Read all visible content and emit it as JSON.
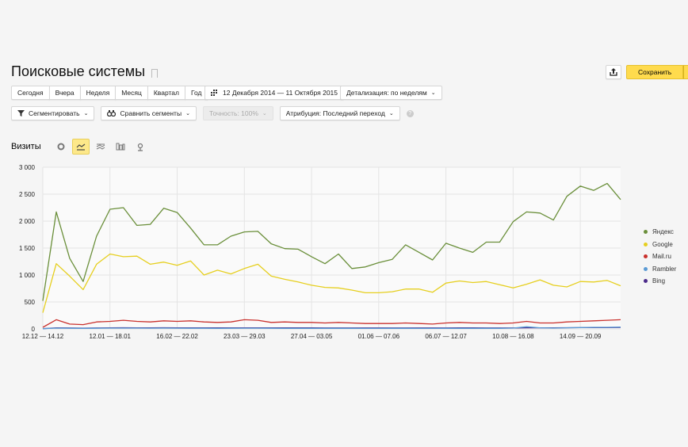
{
  "header": {
    "title": "Поисковые системы",
    "save_label": "Сохранить"
  },
  "toolbar": {
    "periods": [
      "Сегодня",
      "Вчера",
      "Неделя",
      "Месяц",
      "Квартал",
      "Год"
    ],
    "date_range": "12 Декабря 2014 — 11 Октября 2015",
    "detail": "Детализация: по неделям",
    "segment": "Сегментировать",
    "compare": "Сравнить сегменты",
    "accuracy": "Точность: 100%",
    "attribution": "Атрибуция: Последний переход"
  },
  "metric": {
    "title": "Визиты",
    "views": [
      "pie-chart-icon",
      "line-chart-icon",
      "area-chart-icon",
      "bar-chart-icon",
      "map-icon"
    ],
    "active_view": "line-chart-icon"
  },
  "colors": {
    "accent": "#ffdb4d",
    "yandex": "#6a8f3a",
    "google": "#e6cf1f",
    "mailru": "#c9302c",
    "rambler": "#5b9bd5",
    "bing": "#4b2a8a"
  },
  "chart_data": {
    "type": "line",
    "title": "Визиты",
    "xlabel": "",
    "ylabel": "",
    "ylim": [
      0,
      3000
    ],
    "yticks": [
      "0",
      "500",
      "1 000",
      "1 500",
      "2 000",
      "2 500",
      "3 000"
    ],
    "xtick_labels": [
      "12.12 — 14.12",
      "12.01 — 18.01",
      "16.02 — 22.02",
      "23.03 — 29.03",
      "27.04 — 03.05",
      "01.06 — 07.06",
      "06.07 — 12.07",
      "10.08 — 16.08",
      "14.09 — 20.09"
    ],
    "xtick_indices": [
      0,
      5,
      10,
      15,
      20,
      25,
      30,
      35,
      40
    ],
    "grid": true,
    "legend_position": "right",
    "series": [
      {
        "name": "Яндекс",
        "color": "#6a8f3a",
        "values": [
          520,
          2170,
          1310,
          880,
          1720,
          2220,
          2250,
          1920,
          1940,
          2240,
          2160,
          1870,
          1560,
          1560,
          1720,
          1800,
          1810,
          1580,
          1490,
          1480,
          1340,
          1210,
          1390,
          1120,
          1150,
          1230,
          1290,
          1560,
          1420,
          1280,
          1590,
          1500,
          1420,
          1610,
          1610,
          1990,
          2170,
          2150,
          2020,
          2460,
          2650,
          2570,
          2700,
          2400
        ]
      },
      {
        "name": "Google",
        "color": "#e6cf1f",
        "values": [
          300,
          1210,
          980,
          730,
          1200,
          1390,
          1340,
          1350,
          1200,
          1240,
          1180,
          1260,
          1000,
          1090,
          1020,
          1120,
          1200,
          980,
          920,
          870,
          810,
          770,
          760,
          720,
          670,
          670,
          690,
          740,
          740,
          680,
          850,
          890,
          860,
          880,
          820,
          760,
          830,
          910,
          810,
          780,
          880,
          870,
          900,
          800
        ]
      },
      {
        "name": "Mail.ru",
        "color": "#c9302c",
        "values": [
          30,
          170,
          90,
          80,
          130,
          140,
          160,
          140,
          130,
          150,
          140,
          150,
          130,
          120,
          130,
          170,
          160,
          120,
          130,
          120,
          120,
          110,
          120,
          110,
          100,
          100,
          100,
          110,
          100,
          90,
          110,
          120,
          110,
          110,
          100,
          110,
          140,
          110,
          110,
          130,
          140,
          150,
          160,
          170
        ]
      },
      {
        "name": "Rambler",
        "color": "#5b9bd5",
        "values": [
          5,
          15,
          12,
          10,
          12,
          14,
          15,
          14,
          13,
          14,
          13,
          12,
          12,
          11,
          12,
          13,
          13,
          12,
          11,
          11,
          10,
          10,
          10,
          10,
          9,
          9,
          10,
          10,
          9,
          9,
          10,
          11,
          11,
          10,
          10,
          15,
          40,
          20,
          15,
          20,
          25,
          30,
          30,
          35
        ]
      },
      {
        "name": "Bing",
        "color": "#4b2a8a",
        "values": [
          5,
          20,
          18,
          15,
          18,
          20,
          22,
          20,
          20,
          22,
          21,
          20,
          20,
          19,
          20,
          21,
          21,
          20,
          19,
          19,
          19,
          18,
          18,
          18,
          17,
          17,
          18,
          18,
          17,
          17,
          18,
          19,
          19,
          18,
          18,
          18,
          20,
          20,
          20,
          22,
          24,
          25,
          25,
          28
        ]
      }
    ]
  }
}
